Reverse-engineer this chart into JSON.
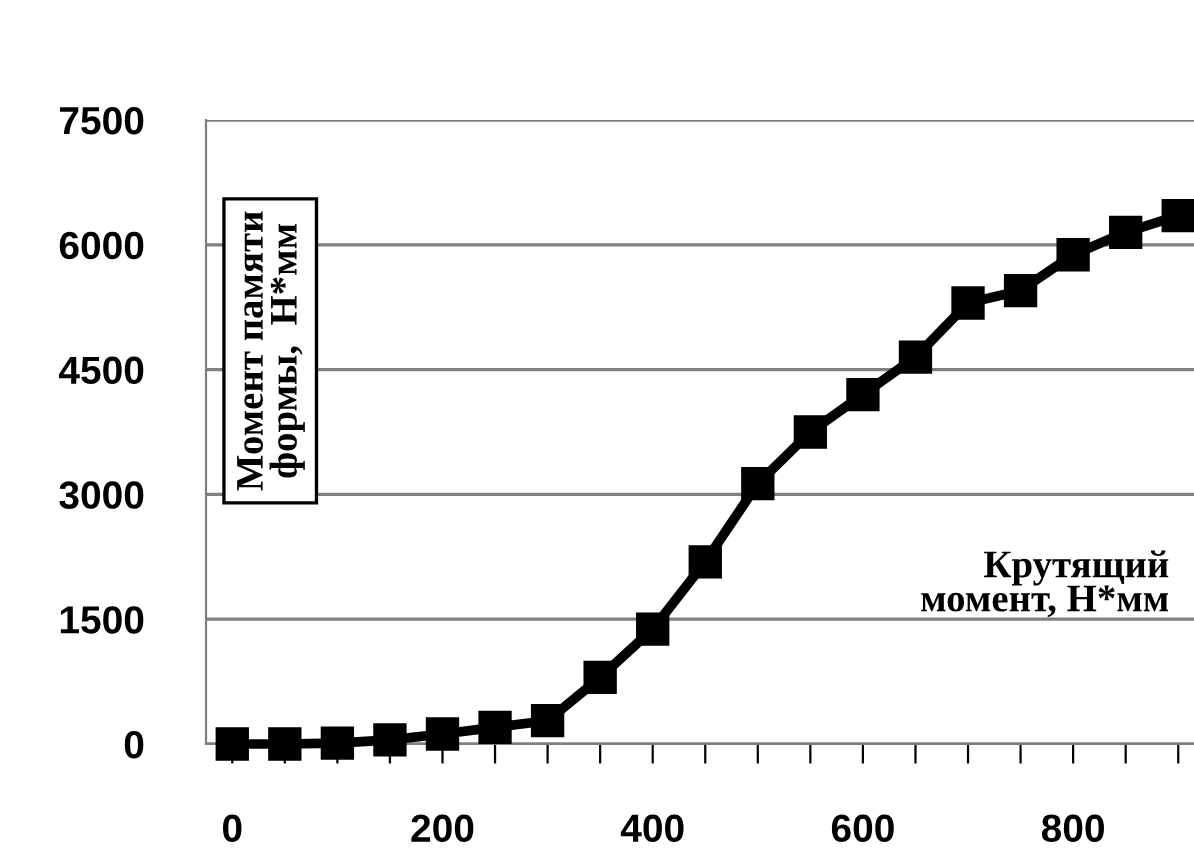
{
  "chart_data": {
    "type": "line",
    "xlabel": "Крутящий\nмомент, Н*мм",
    "ylabel": "Момент памяти\nформы,  Н*мм",
    "x": [
      0,
      50,
      100,
      150,
      200,
      250,
      300,
      350,
      400,
      450,
      500,
      550,
      600,
      650,
      700,
      750,
      800,
      850,
      900
    ],
    "series": [
      {
        "color": "#000000",
        "values": [
          0,
          0,
          10,
          50,
          120,
          200,
          280,
          800,
          1380,
          2190,
          3130,
          3750,
          4200,
          4650,
          5300,
          5450,
          5880,
          6150,
          6350
        ]
      }
    ],
    "xlim": [
      -25,
      915
    ],
    "ylim": [
      0,
      7500
    ],
    "xticks": [
      0,
      {
        "value": 50,
        "label": null
      },
      200,
      {
        "value": 100,
        "label": null
      },
      {
        "value": 150,
        "label": null
      },
      {
        "value": 250,
        "label": null
      },
      {
        "value": 300,
        "label": null
      },
      {
        "value": 350,
        "label": null
      },
      400,
      {
        "value": 450,
        "label": null
      },
      {
        "value": 500,
        "label": null
      },
      {
        "value": 550,
        "label": null
      },
      600,
      {
        "value": 650,
        "label": null
      },
      {
        "value": 700,
        "label": null
      },
      {
        "value": 750,
        "label": null
      },
      800,
      {
        "value": 850,
        "label": null
      },
      {
        "value": 900,
        "label": null
      }
    ],
    "yticks": [
      0,
      1500,
      3000,
      4500,
      6000,
      7500
    ],
    "grid": "y",
    "marker": "square",
    "line_style": "solid"
  }
}
